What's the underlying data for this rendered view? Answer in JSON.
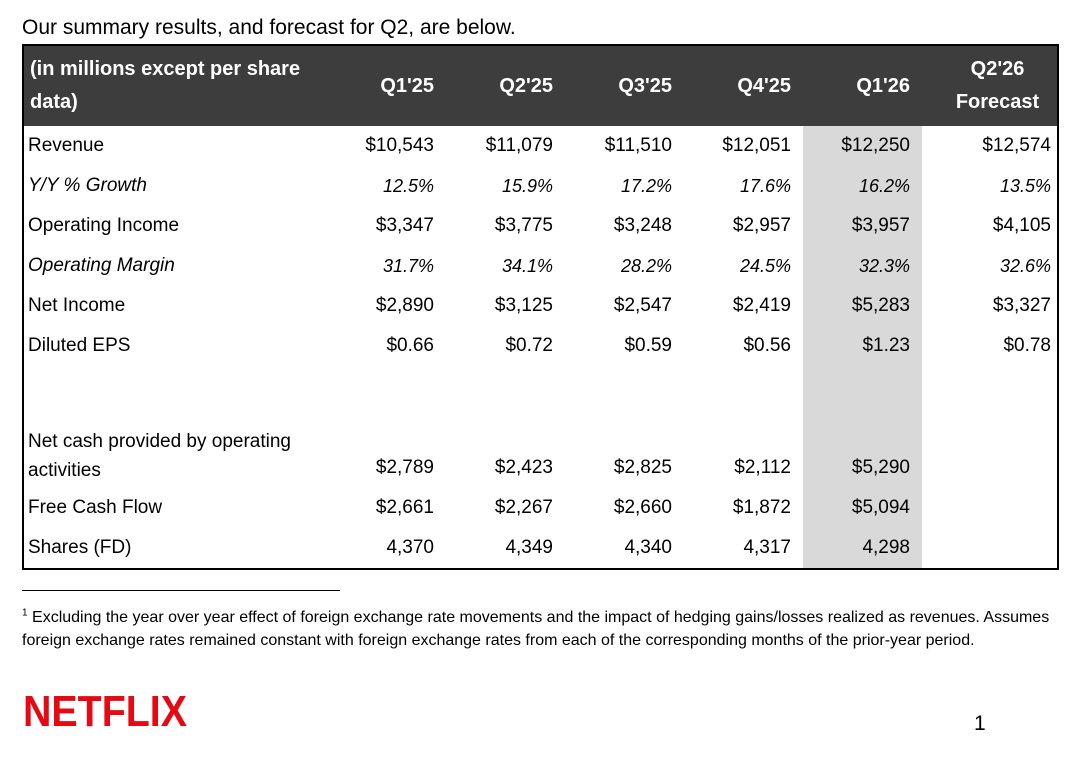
{
  "intro": "Our summary results, and forecast for Q2, are below.",
  "table": {
    "header": {
      "label": "(in millions except per share data)",
      "columns": [
        "Q1'25",
        "Q2'25",
        "Q3'25",
        "Q4'25",
        "Q1'26"
      ],
      "forecast_line1": "Q2'26",
      "forecast_line2": "Forecast"
    },
    "rows": {
      "revenue": {
        "label": "Revenue",
        "values": [
          "$10,543",
          "$11,079",
          "$11,510",
          "$12,051",
          "$12,250",
          "$12,574"
        ]
      },
      "growth": {
        "label": "Y/Y % Growth",
        "values": [
          "12.5%",
          "15.9%",
          "17.2%",
          "17.6%",
          "16.2%",
          "13.5%"
        ]
      },
      "operating_income": {
        "label": "Operating Income",
        "values": [
          "$3,347",
          "$3,775",
          "$3,248",
          "$2,957",
          "$3,957",
          "$4,105"
        ]
      },
      "operating_margin": {
        "label": "Operating Margin",
        "values": [
          "31.7%",
          "34.1%",
          "28.2%",
          "24.5%",
          "32.3%",
          "32.6%"
        ]
      },
      "net_income": {
        "label": "Net Income",
        "values": [
          "$2,890",
          "$3,125",
          "$2,547",
          "$2,419",
          "$5,283",
          "$3,327"
        ]
      },
      "diluted_eps": {
        "label": "Diluted EPS",
        "values": [
          "$0.66",
          "$0.72",
          "$0.59",
          "$0.56",
          "$1.23",
          "$0.78"
        ]
      },
      "operating_cash": {
        "label": "Net cash provided by operating activities",
        "values": [
          "$2,789",
          "$2,423",
          "$2,825",
          "$2,112",
          "$5,290"
        ]
      },
      "free_cash_flow": {
        "label": "Free Cash Flow",
        "values": [
          "$2,661",
          "$2,267",
          "$2,660",
          "$1,872",
          "$5,094"
        ]
      },
      "shares": {
        "label": "Shares (FD)",
        "values": [
          "4,370",
          "4,349",
          "4,340",
          "4,317",
          "4,298"
        ]
      }
    }
  },
  "footnote": {
    "marker": "1",
    "text": "Excluding the year over year effect of foreign exchange rate movements and the impact of hedging gains/losses realized as revenues. Assumes foreign exchange rates remained constant with foreign exchange rates from each of the corresponding months of the prior-year period."
  },
  "logo": {
    "text": "NETFLIX",
    "color": "#e50914"
  },
  "page_number": "1",
  "colors": {
    "header_bg": "#3d3d3d",
    "highlight_column": "#d9d9d9"
  }
}
